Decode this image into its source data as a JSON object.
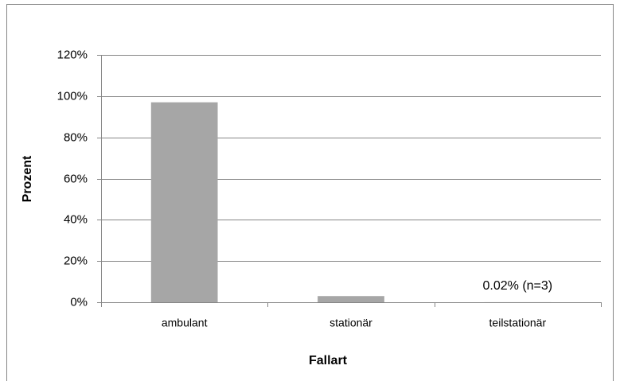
{
  "chart_data": {
    "type": "bar",
    "categories": [
      "ambulant",
      "stationär",
      "teilstationär"
    ],
    "values": [
      97,
      3,
      0.02
    ],
    "value_labels": [
      null,
      null,
      "0.02% (n=3)"
    ],
    "color": "#a6a6a6",
    "xlabel": "Fallart",
    "ylabel": "Prozent",
    "ylim": [
      0,
      120
    ],
    "yticks": [
      {
        "value": 0,
        "label": "0%"
      },
      {
        "value": 20,
        "label": "20%"
      },
      {
        "value": 40,
        "label": "40%"
      },
      {
        "value": 60,
        "label": "60%"
      },
      {
        "value": 80,
        "label": "80%"
      },
      {
        "value": 100,
        "label": "100%"
      },
      {
        "value": 120,
        "label": "120%"
      }
    ],
    "grid": true
  }
}
